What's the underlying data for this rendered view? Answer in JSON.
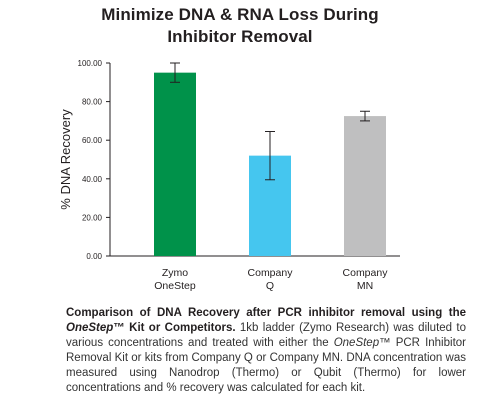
{
  "chart_data": {
    "type": "bar",
    "title_lines": [
      "Minimize DNA & RNA Loss During",
      "Inhibitor Removal"
    ],
    "ylabel": "% DNA Recovery",
    "xlabel": "",
    "ylim": [
      0,
      100
    ],
    "yticks": [
      "0.00",
      "20.00",
      "40.00",
      "60.00",
      "80.00",
      "100.00"
    ],
    "ytick_values": [
      0,
      20,
      40,
      60,
      80,
      100
    ],
    "grid": false,
    "categories": [
      {
        "line1": "Zymo",
        "line2": "OneStep"
      },
      {
        "line1": "Company",
        "line2": "Q"
      },
      {
        "line1": "Company",
        "line2": "MN"
      }
    ],
    "values": [
      95,
      52,
      72.5
    ],
    "error": [
      5,
      12.5,
      2.5
    ],
    "colors": [
      "#00924a",
      "#45c6ef",
      "#bfbfc0"
    ]
  },
  "caption": {
    "bold_part1": "Comparison of DNA Recovery after PCR inhibitor removal using the ",
    "bold_italic": "OneStep",
    "bold_tm": "™",
    "bold_part2": " Kit or Competitors.",
    "text1": " 1kb ladder (Zymo Research) was diluted to various concentrations and treated with either the ",
    "italic": "OneStep",
    "text2": "™ PCR Inhibitor Removal Kit or kits from Company Q or Company MN. DNA concentration was measured using Nanodrop (Thermo) or Qubit (Thermo) for lower concentrations and % recovery was calculated for each kit."
  }
}
